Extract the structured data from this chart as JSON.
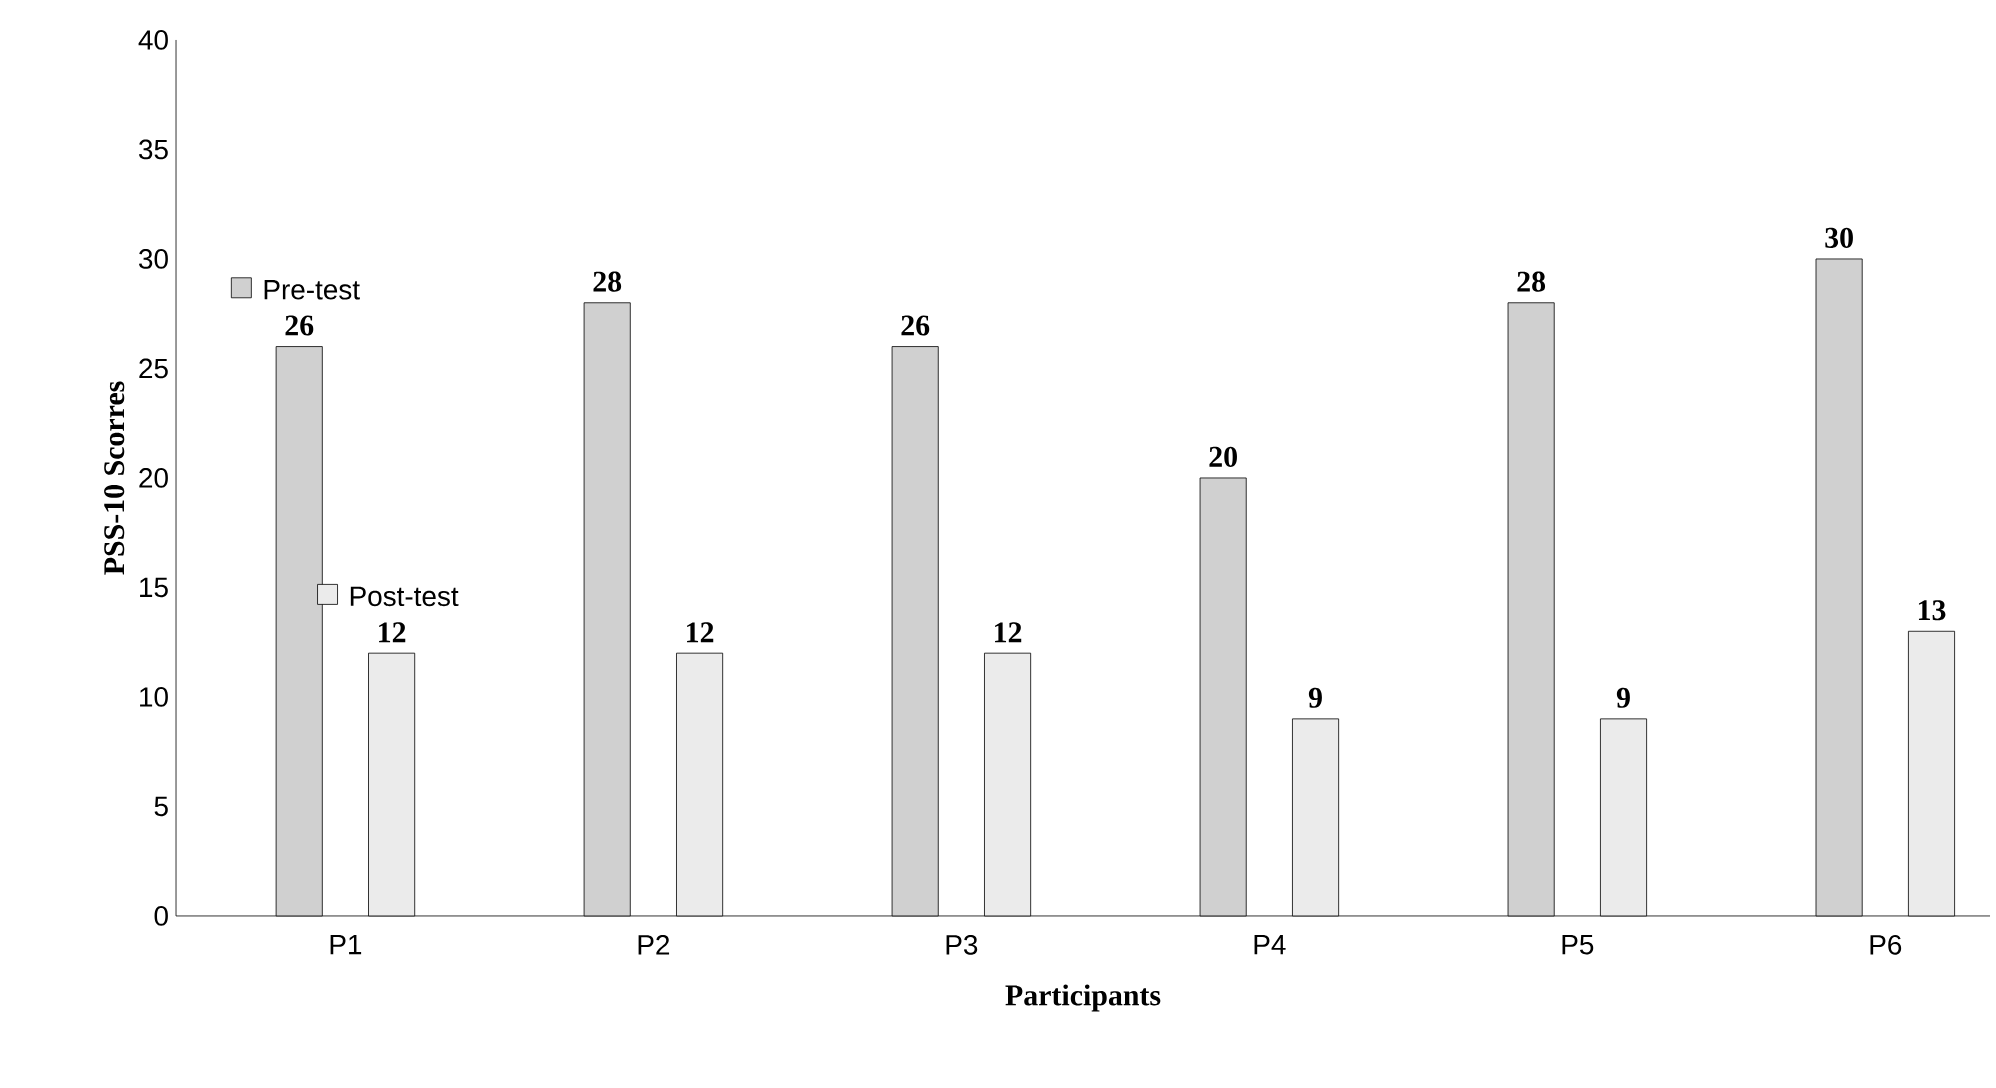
{
  "chart_data": {
    "type": "bar",
    "xlabel": "Participants",
    "ylabel": "PSS-10 Scorres",
    "categories": [
      "P1",
      "P2",
      "P3",
      "P4",
      "P5",
      "P6"
    ],
    "series": [
      {
        "name": "Pre-test",
        "color": "#d0d0d0",
        "values": [
          26,
          28,
          26,
          20,
          28,
          30
        ]
      },
      {
        "name": "Post-test",
        "color": "#ebebeb",
        "values": [
          12,
          12,
          12,
          9,
          9,
          13
        ]
      }
    ],
    "ylim": [
      0,
      40
    ],
    "yticks": [
      0,
      5,
      10,
      15,
      20,
      25,
      30,
      35,
      40
    ],
    "data_labels": true,
    "legend": "top left"
  }
}
